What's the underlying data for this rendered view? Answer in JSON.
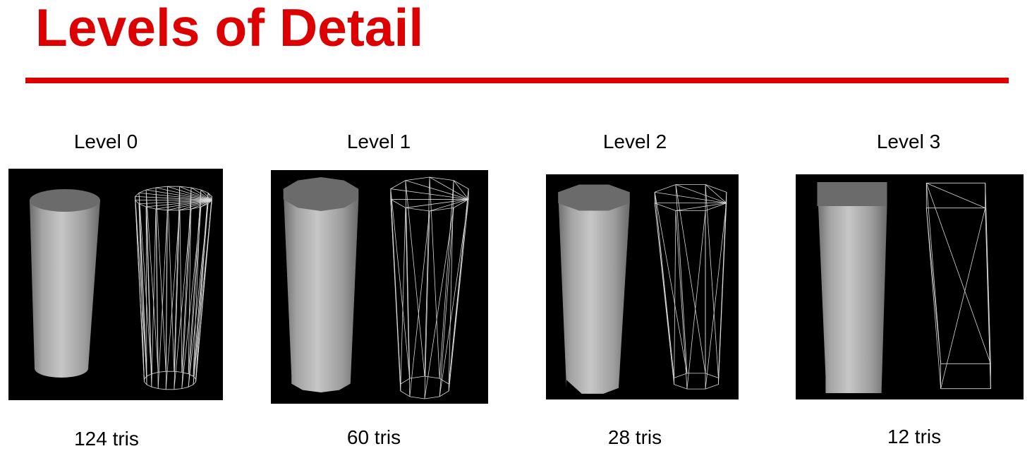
{
  "slide": {
    "title": "Levels of Detail",
    "accent_color": "#dd0000",
    "panel_background": "#000000"
  },
  "levels": [
    {
      "label": "Level 0",
      "triangles": "124 tris",
      "segments": 20
    },
    {
      "label": "Level 1",
      "triangles": "60 tris",
      "segments": 10
    },
    {
      "label": "Level 2",
      "triangles": "28 tris",
      "segments": 8
    },
    {
      "label": "Level 3",
      "triangles": "12 tris",
      "segments": 4
    }
  ]
}
